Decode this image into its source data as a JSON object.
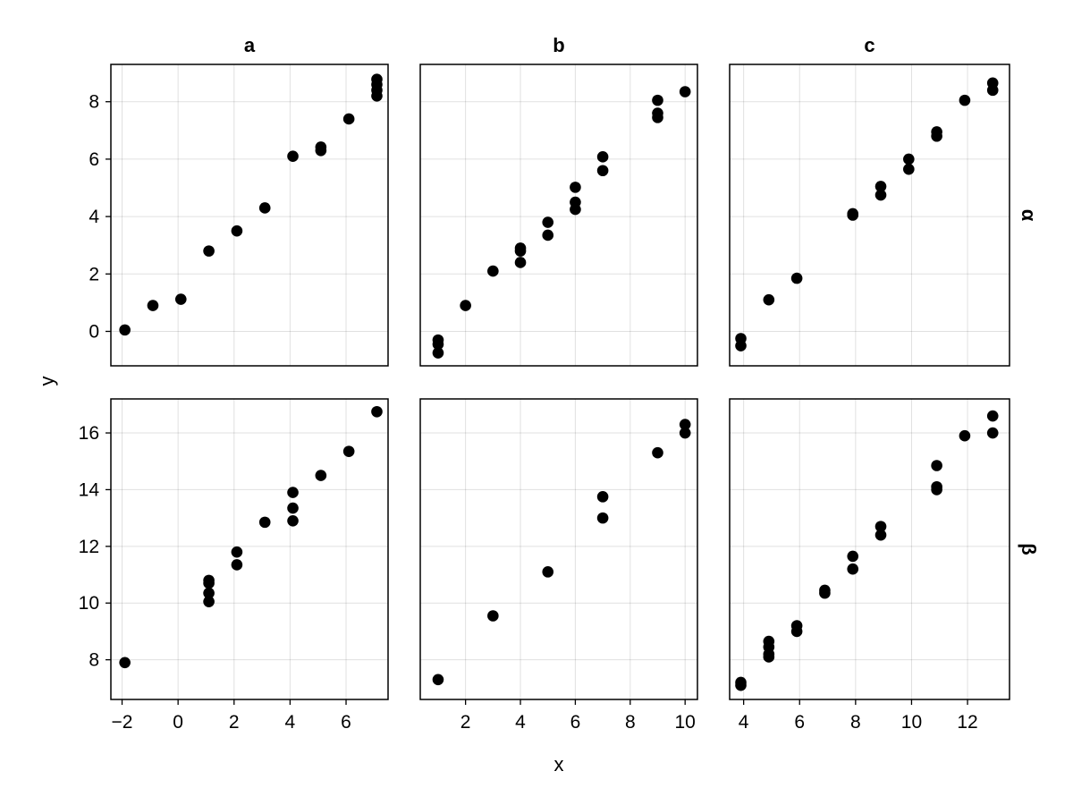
{
  "chart_data": {
    "type": "scatter",
    "facet": {
      "columns": [
        "a",
        "b",
        "c"
      ],
      "rows": [
        "α",
        "β"
      ],
      "x_shared_per_column": true,
      "y_shared_per_row": true
    },
    "xlabel": "x",
    "ylabel": "y",
    "grid": true,
    "marker_color": "#000000",
    "x_axes": [
      {
        "column": "a",
        "range": [
          -2.4,
          7.5
        ],
        "ticks": [
          -2,
          0,
          2,
          4,
          6
        ],
        "tick_labels": [
          "−2",
          "0",
          "2",
          "4",
          "6"
        ]
      },
      {
        "column": "b",
        "range": [
          0.35,
          10.45
        ],
        "ticks": [
          2,
          4,
          6,
          8,
          10
        ],
        "tick_labels": [
          "2",
          "4",
          "6",
          "8",
          "10"
        ]
      },
      {
        "column": "c",
        "range": [
          3.5,
          13.5
        ],
        "ticks": [
          4,
          6,
          8,
          10,
          12
        ],
        "tick_labels": [
          "4",
          "6",
          "8",
          "10",
          "12"
        ]
      }
    ],
    "y_axes": [
      {
        "row": "α",
        "range": [
          -1.2,
          9.3
        ],
        "ticks": [
          0,
          2,
          4,
          6,
          8
        ],
        "tick_labels": [
          "0",
          "2",
          "4",
          "6",
          "8"
        ]
      },
      {
        "row": "β",
        "range": [
          6.6,
          17.2
        ],
        "ticks": [
          8,
          10,
          12,
          14,
          16
        ],
        "tick_labels": [
          "8",
          "10",
          "12",
          "14",
          "16"
        ]
      }
    ],
    "panels": [
      {
        "row": "α",
        "column": "a",
        "points": [
          [
            -1.9,
            0.05
          ],
          [
            -0.9,
            0.9
          ],
          [
            0.1,
            1.12
          ],
          [
            1.1,
            2.8
          ],
          [
            2.1,
            3.5
          ],
          [
            3.1,
            4.3
          ],
          [
            4.1,
            6.1
          ],
          [
            5.1,
            6.3
          ],
          [
            5.1,
            6.42
          ],
          [
            6.1,
            7.4
          ],
          [
            7.1,
            8.2
          ],
          [
            7.1,
            8.4
          ],
          [
            7.1,
            8.6
          ],
          [
            7.1,
            8.78
          ]
        ]
      },
      {
        "row": "α",
        "column": "b",
        "points": [
          [
            1.0,
            -0.3
          ],
          [
            1.0,
            -0.45
          ],
          [
            1.0,
            -0.75
          ],
          [
            2.0,
            0.9
          ],
          [
            3.0,
            2.1
          ],
          [
            4.0,
            2.4
          ],
          [
            4.0,
            2.8
          ],
          [
            4.0,
            2.9
          ],
          [
            5.0,
            3.35
          ],
          [
            5.0,
            3.8
          ],
          [
            6.0,
            4.25
          ],
          [
            6.0,
            4.5
          ],
          [
            6.0,
            5.02
          ],
          [
            7.0,
            5.6
          ],
          [
            7.0,
            6.08
          ],
          [
            9.0,
            7.45
          ],
          [
            9.0,
            7.6
          ],
          [
            9.0,
            8.05
          ],
          [
            10.0,
            8.35
          ]
        ]
      },
      {
        "row": "α",
        "column": "c",
        "points": [
          [
            3.9,
            -0.25
          ],
          [
            3.9,
            -0.5
          ],
          [
            4.9,
            1.1
          ],
          [
            5.9,
            1.85
          ],
          [
            7.9,
            4.05
          ],
          [
            7.9,
            4.1
          ],
          [
            8.9,
            4.75
          ],
          [
            8.9,
            5.05
          ],
          [
            9.9,
            5.65
          ],
          [
            9.9,
            6.0
          ],
          [
            10.9,
            6.8
          ],
          [
            10.9,
            6.95
          ],
          [
            11.9,
            8.05
          ],
          [
            12.9,
            8.4
          ],
          [
            12.9,
            8.65
          ]
        ]
      },
      {
        "row": "β",
        "column": "a",
        "points": [
          [
            -1.9,
            7.9
          ],
          [
            1.1,
            10.05
          ],
          [
            1.1,
            10.35
          ],
          [
            1.1,
            10.7
          ],
          [
            1.1,
            10.8
          ],
          [
            2.1,
            11.35
          ],
          [
            2.1,
            11.8
          ],
          [
            3.1,
            12.85
          ],
          [
            4.1,
            12.9
          ],
          [
            4.1,
            13.35
          ],
          [
            4.1,
            13.9
          ],
          [
            5.1,
            14.5
          ],
          [
            6.1,
            15.35
          ],
          [
            7.1,
            16.75
          ]
        ]
      },
      {
        "row": "β",
        "column": "b",
        "points": [
          [
            1.0,
            7.3
          ],
          [
            3.0,
            9.55
          ],
          [
            5.0,
            11.1
          ],
          [
            7.0,
            13.0
          ],
          [
            7.0,
            13.75
          ],
          [
            9.0,
            15.3
          ],
          [
            10.0,
            16.0
          ],
          [
            10.0,
            16.3
          ]
        ]
      },
      {
        "row": "β",
        "column": "c",
        "points": [
          [
            3.9,
            7.1
          ],
          [
            3.9,
            7.2
          ],
          [
            4.9,
            8.1
          ],
          [
            4.9,
            8.2
          ],
          [
            4.9,
            8.45
          ],
          [
            4.9,
            8.65
          ],
          [
            5.9,
            9.0
          ],
          [
            5.9,
            9.2
          ],
          [
            6.9,
            10.35
          ],
          [
            6.9,
            10.45
          ],
          [
            7.9,
            11.2
          ],
          [
            7.9,
            11.65
          ],
          [
            8.9,
            12.4
          ],
          [
            8.9,
            12.7
          ],
          [
            10.9,
            14.0
          ],
          [
            10.9,
            14.1
          ],
          [
            10.9,
            14.85
          ],
          [
            11.9,
            15.9
          ],
          [
            12.9,
            16.0
          ],
          [
            12.9,
            16.6
          ]
        ]
      }
    ]
  }
}
